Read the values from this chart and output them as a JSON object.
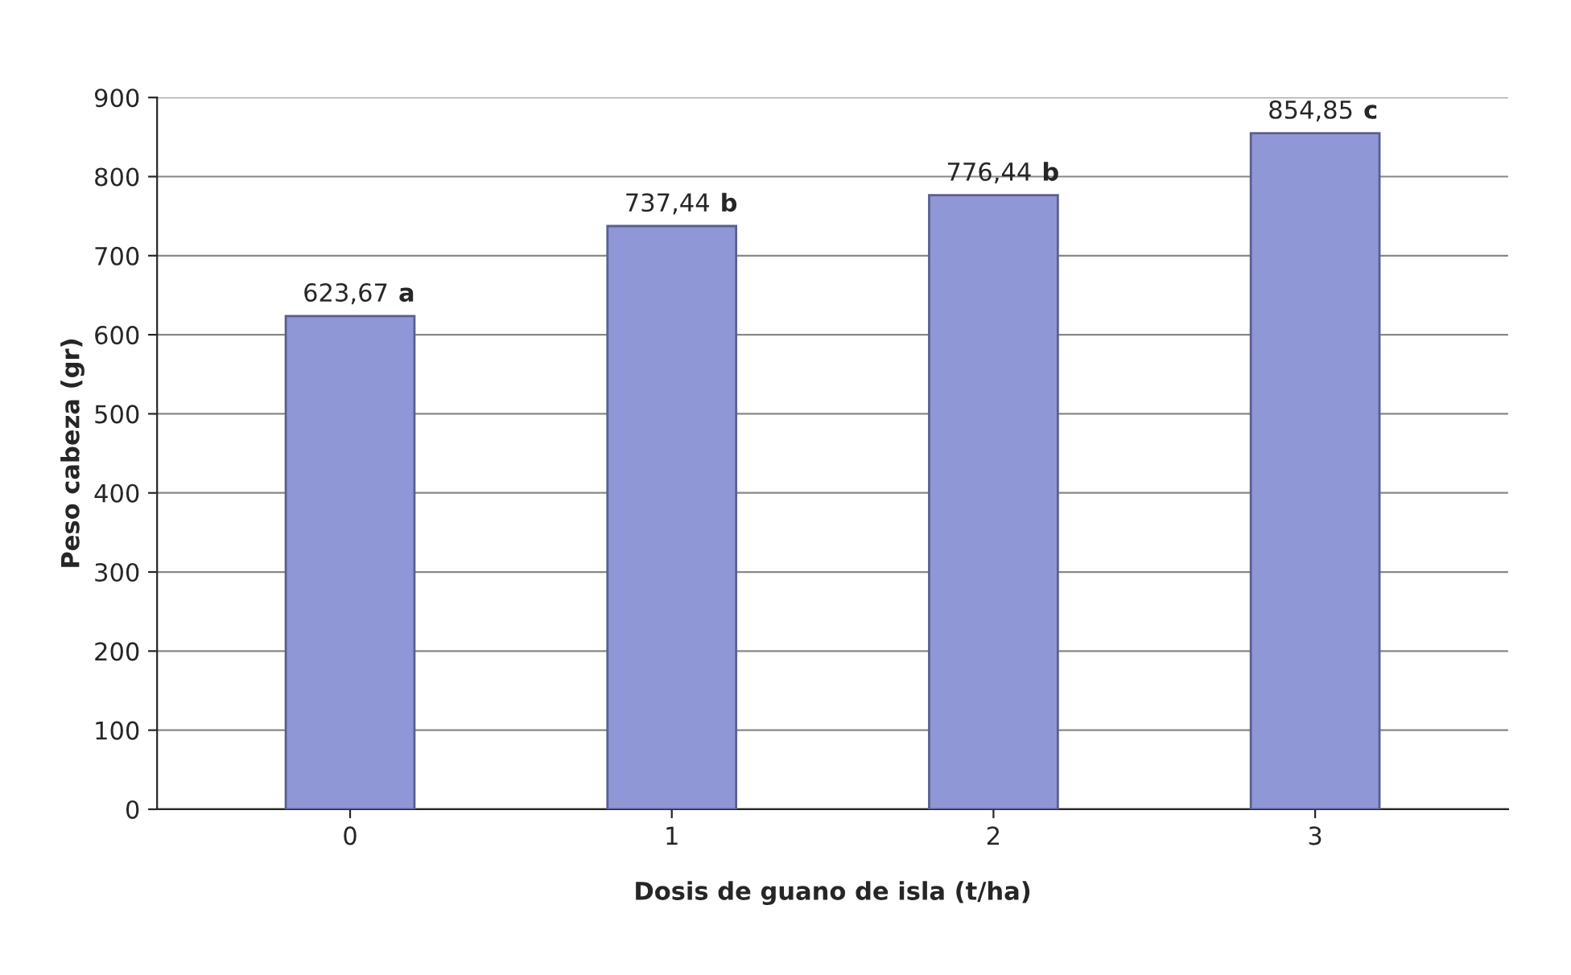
{
  "chart_data": {
    "type": "bar",
    "xlabel": "Dosis de guano de isla (t/ha)",
    "ylabel": "Peso cabeza (gr)",
    "categories": [
      "0",
      "1",
      "2",
      "3"
    ],
    "values": [
      623.67,
      737.44,
      776.44,
      854.85
    ],
    "value_labels": [
      "623,67",
      "737,44",
      "776,44",
      "854,85"
    ],
    "annotations": [
      "a",
      "b",
      "b",
      "c"
    ],
    "color": "#8f97d6",
    "ylim": [
      0,
      900
    ],
    "yticks": [
      0,
      100,
      200,
      300,
      400,
      500,
      600,
      700,
      800,
      900
    ],
    "grid": "y",
    "legend": false
  }
}
